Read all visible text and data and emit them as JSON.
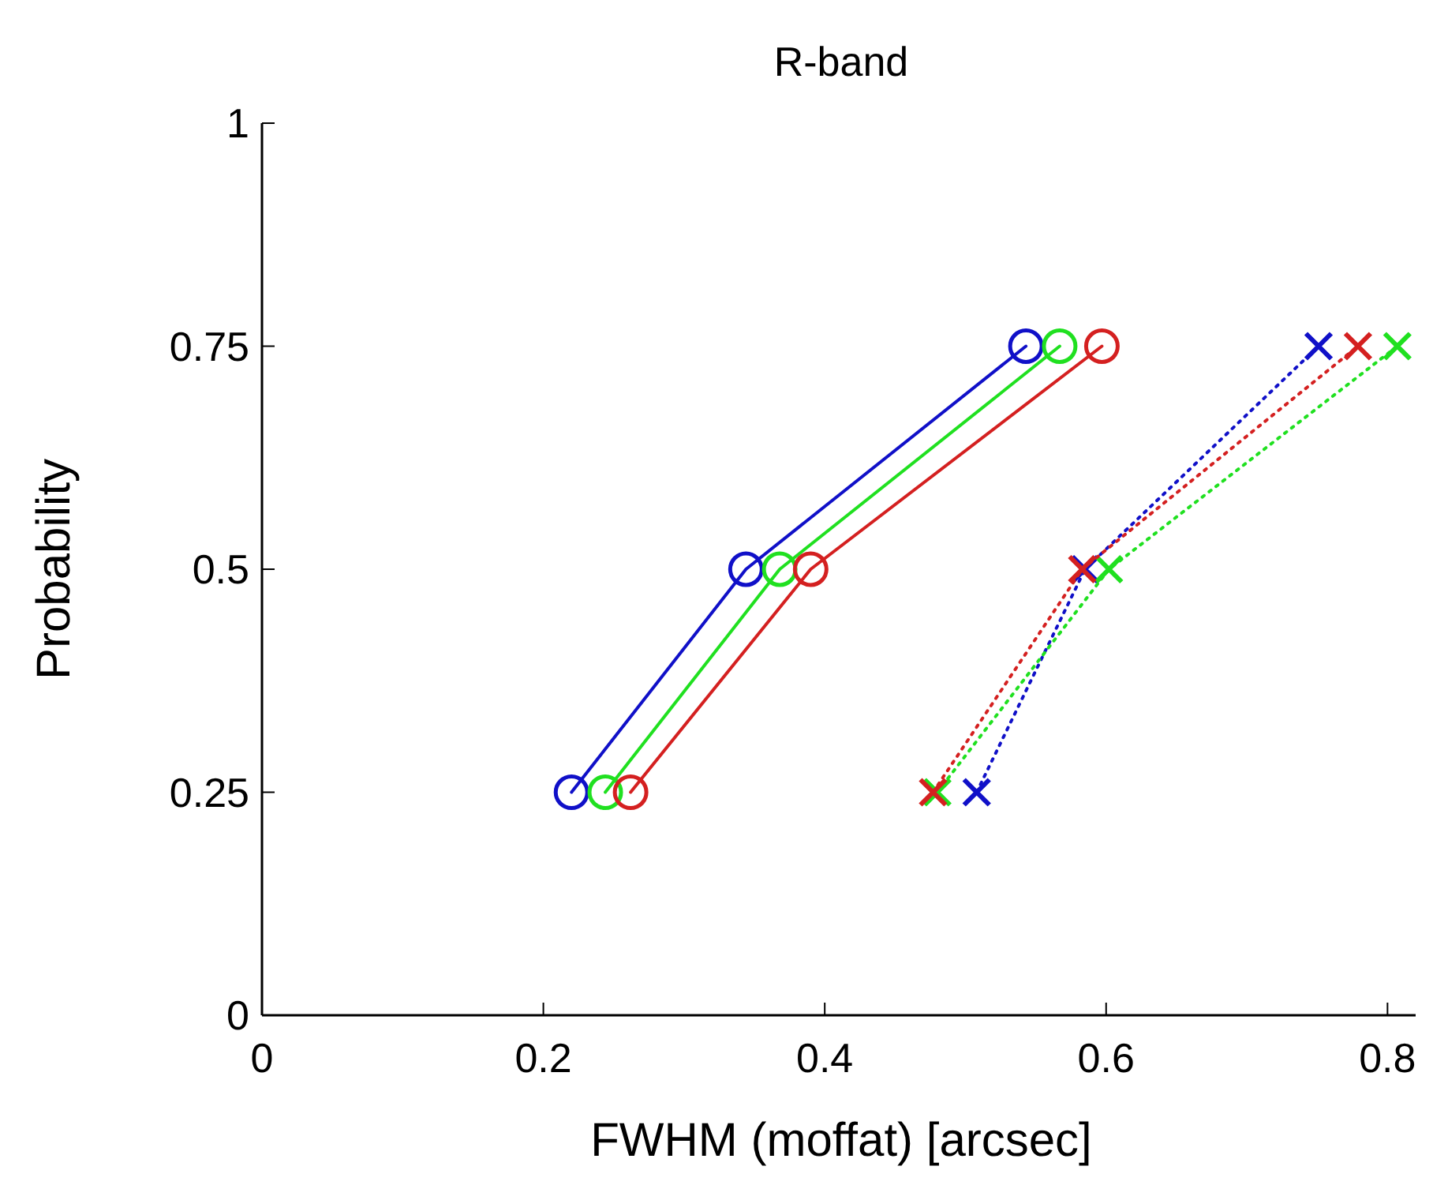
{
  "chart_data": {
    "type": "line",
    "title": "R-band",
    "xlabel": "FWHM (moffat) [arcsec]",
    "ylabel": "Probability",
    "xlim": [
      0,
      0.82
    ],
    "xticks": [
      0,
      0.2,
      0.4,
      0.6,
      0.8
    ],
    "ylim": [
      0,
      1
    ],
    "yticks": [
      0,
      0.25,
      0.5,
      0.75,
      1
    ],
    "series": [
      {
        "color": "#1010c8",
        "x": [
          0.22,
          0.344,
          0.543
        ],
        "values": [
          0.25,
          0.5,
          0.75
        ],
        "marker": "circle",
        "line_style": "solid"
      },
      {
        "color": "#20e020",
        "x": [
          0.244,
          0.368,
          0.567
        ],
        "values": [
          0.25,
          0.5,
          0.75
        ],
        "marker": "circle",
        "line_style": "solid"
      },
      {
        "color": "#d42020",
        "x": [
          0.262,
          0.39,
          0.597
        ],
        "values": [
          0.25,
          0.5,
          0.75
        ],
        "marker": "circle",
        "line_style": "solid"
      },
      {
        "color": "#1010c8",
        "x": [
          0.508,
          0.585,
          0.751
        ],
        "values": [
          0.25,
          0.5,
          0.75
        ],
        "marker": "cross",
        "line_style": "dotted"
      },
      {
        "color": "#20e020",
        "x": [
          0.48,
          0.602,
          0.807
        ],
        "values": [
          0.25,
          0.5,
          0.75
        ],
        "marker": "cross",
        "line_style": "dotted"
      },
      {
        "color": "#d42020",
        "x": [
          0.477,
          0.583,
          0.779
        ],
        "values": [
          0.25,
          0.5,
          0.75
        ],
        "marker": "cross",
        "line_style": "dotted"
      }
    ]
  }
}
